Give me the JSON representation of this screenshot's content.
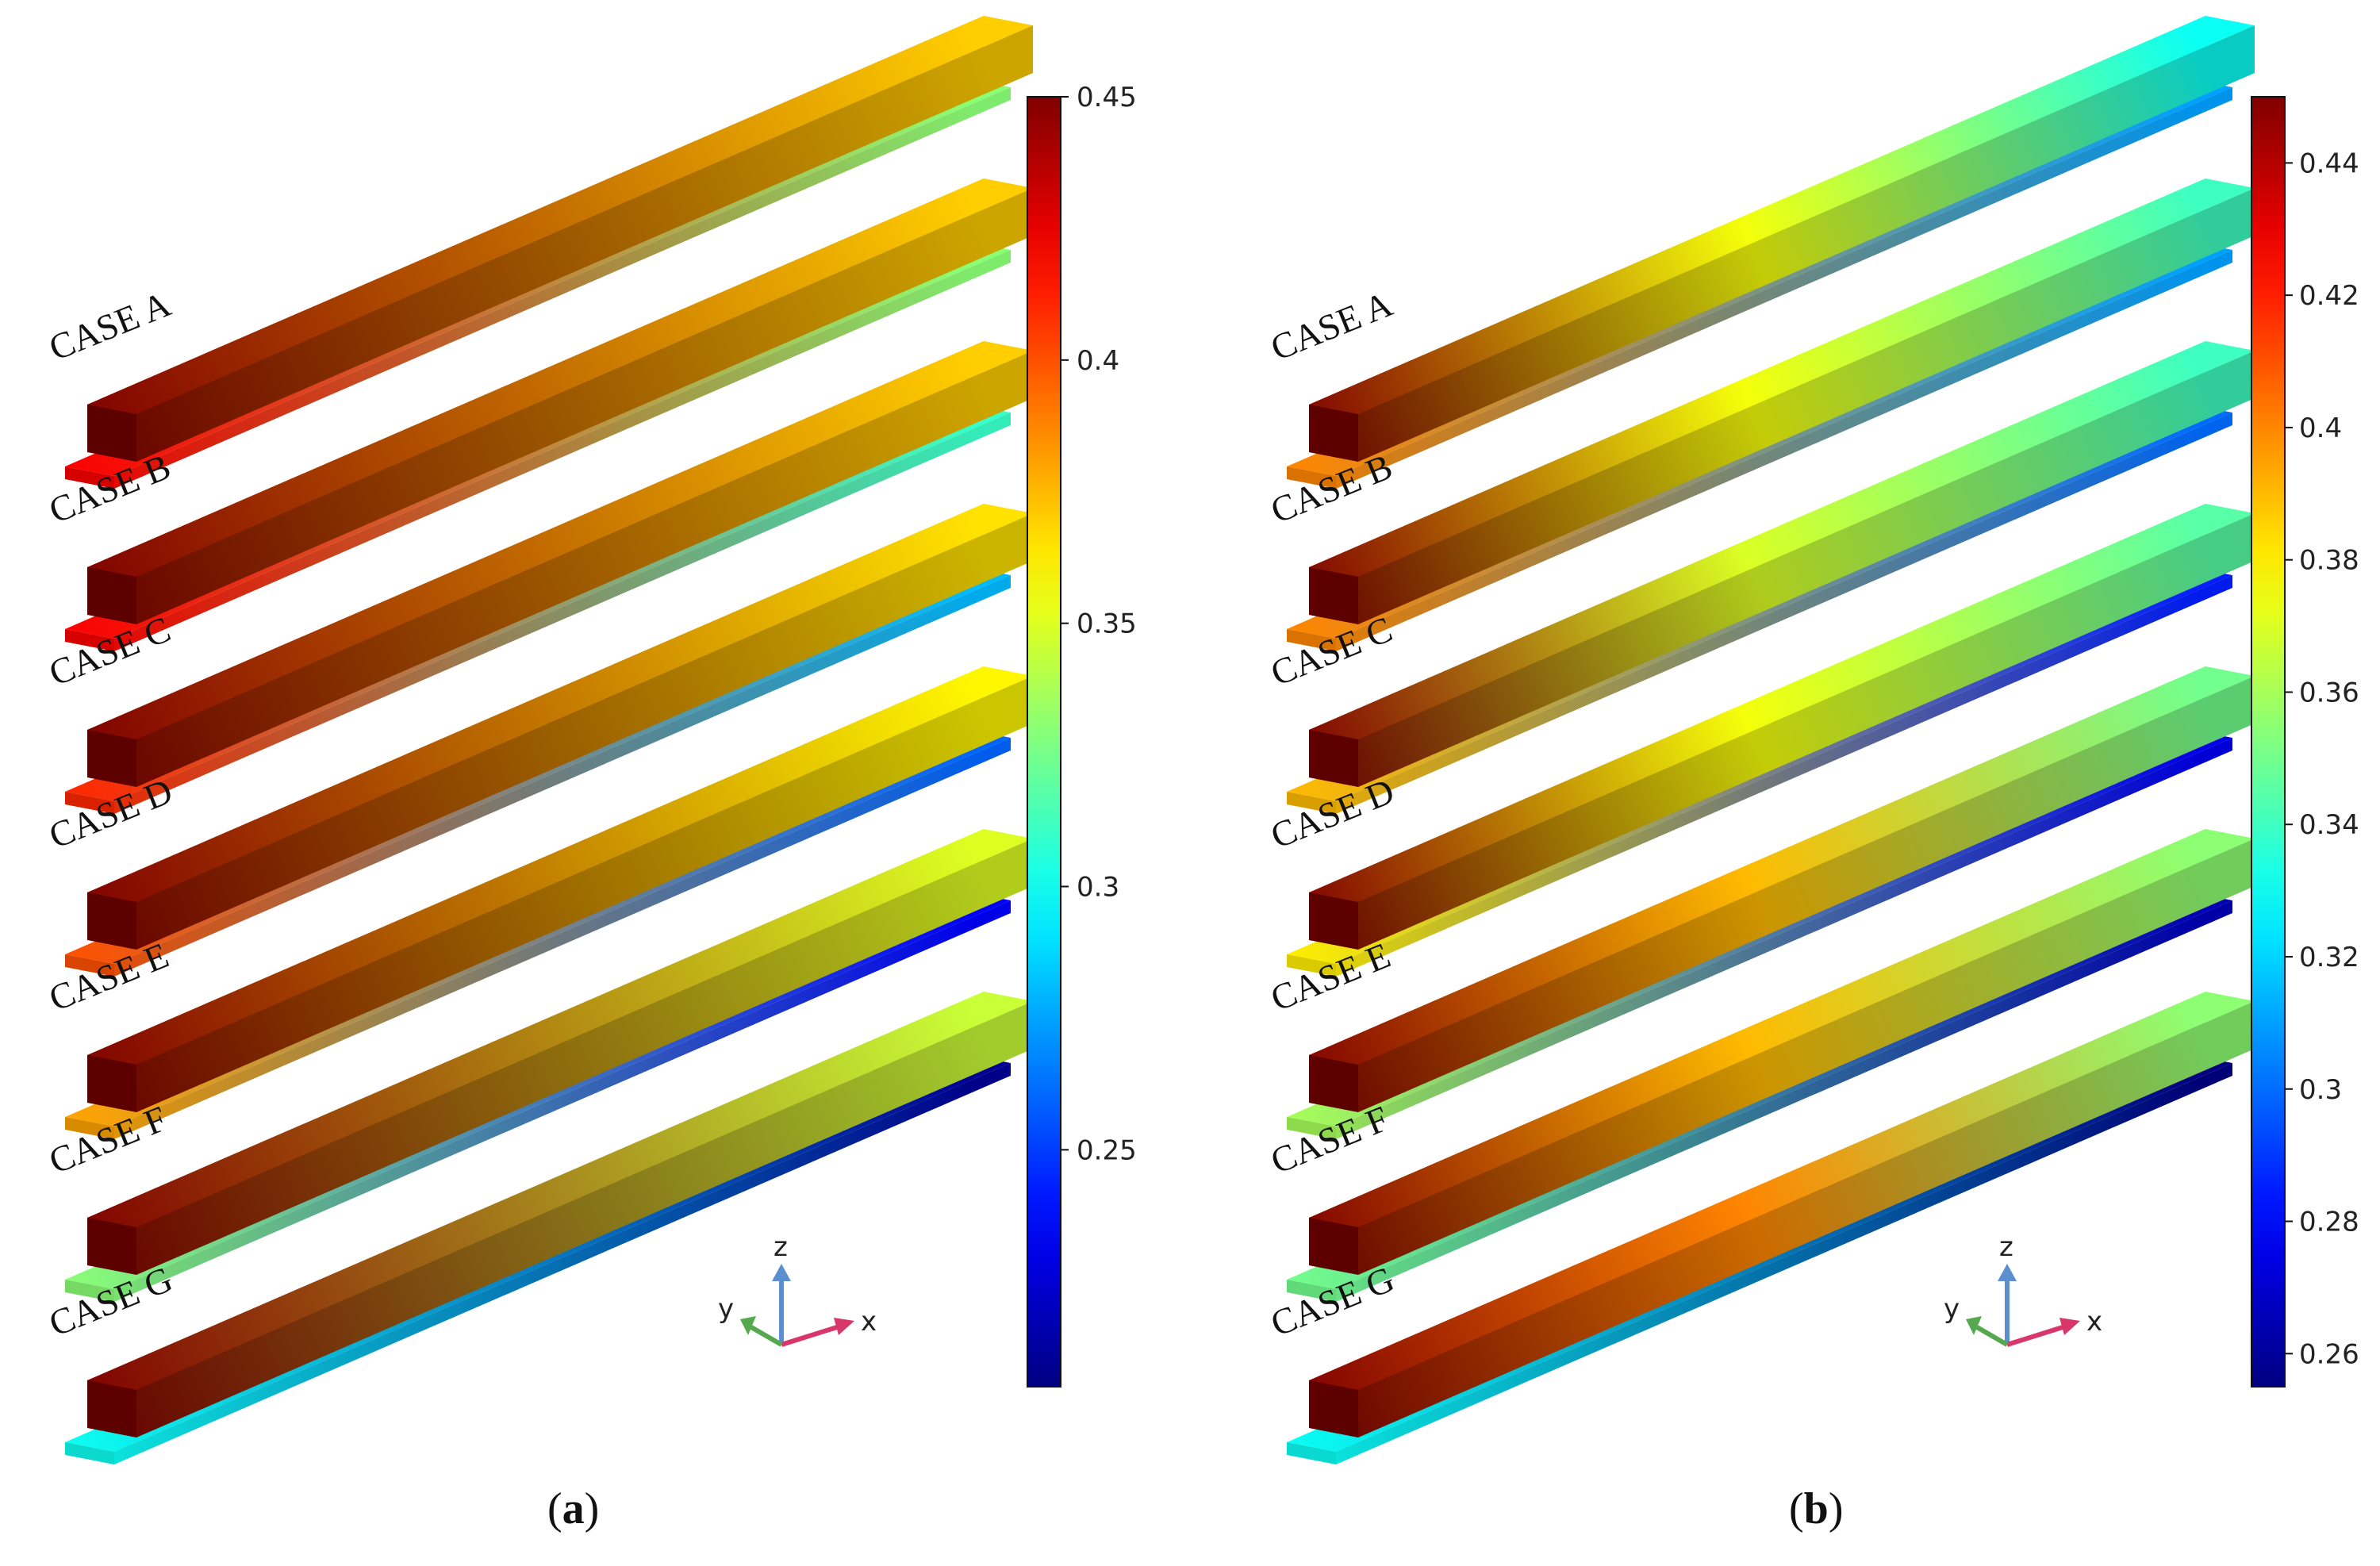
{
  "panels": [
    {
      "id": "a",
      "label": "a",
      "colorbar": {
        "min": 0.205,
        "max": 0.45,
        "ticks": [
          "0.45",
          "0.4",
          "0.35",
          "0.3",
          "0.25"
        ],
        "tick_values": [
          0.45,
          0.4,
          0.35,
          0.3,
          0.25
        ]
      },
      "cases": [
        {
          "name": "CASE A",
          "top_start": 0.45,
          "top_end": 0.37,
          "base_start": 0.42,
          "base_end": 0.33
        },
        {
          "name": "CASE B",
          "top_start": 0.45,
          "top_end": 0.37,
          "base_start": 0.42,
          "base_end": 0.33
        },
        {
          "name": "CASE C",
          "top_start": 0.45,
          "top_end": 0.37,
          "base_start": 0.41,
          "base_end": 0.31
        },
        {
          "name": "CASE D",
          "top_start": 0.45,
          "top_end": 0.365,
          "base_start": 0.4,
          "base_end": 0.28
        },
        {
          "name": "CASE E",
          "top_start": 0.45,
          "top_end": 0.36,
          "base_start": 0.38,
          "base_end": 0.26
        },
        {
          "name": "CASE F",
          "top_start": 0.45,
          "top_end": 0.35,
          "base_start": 0.33,
          "base_end": 0.235
        },
        {
          "name": "CASE G",
          "top_start": 0.45,
          "top_end": 0.345,
          "base_start": 0.3,
          "base_end": 0.21
        }
      ]
    },
    {
      "id": "b",
      "label": "b",
      "colorbar": {
        "min": 0.255,
        "max": 0.45,
        "ticks": [
          "0.44",
          "0.42",
          "0.4",
          "0.38",
          "0.36",
          "0.34",
          "0.32",
          "0.3",
          "0.28",
          "0.26"
        ],
        "tick_values": [
          0.44,
          0.42,
          0.4,
          0.38,
          0.36,
          0.34,
          0.32,
          0.3,
          0.28,
          0.26
        ]
      },
      "cases": [
        {
          "name": "CASE A",
          "top_start": 0.45,
          "top_mid": 0.375,
          "top_end": 0.33,
          "base_start": 0.4,
          "base_end": 0.31
        },
        {
          "name": "CASE B",
          "top_start": 0.45,
          "top_mid": 0.375,
          "top_end": 0.34,
          "base_start": 0.4,
          "base_end": 0.31
        },
        {
          "name": "CASE C",
          "top_start": 0.45,
          "top_mid": 0.37,
          "top_end": 0.34,
          "base_start": 0.39,
          "base_end": 0.3
        },
        {
          "name": "CASE D",
          "top_start": 0.45,
          "top_mid": 0.375,
          "top_end": 0.345,
          "base_start": 0.38,
          "base_end": 0.285
        },
        {
          "name": "CASE E",
          "top_start": 0.45,
          "top_mid": 0.39,
          "top_end": 0.35,
          "base_start": 0.36,
          "base_end": 0.275
        },
        {
          "name": "CASE F",
          "top_start": 0.45,
          "top_mid": 0.39,
          "top_end": 0.355,
          "base_start": 0.35,
          "base_end": 0.265
        },
        {
          "name": "CASE G",
          "top_start": 0.45,
          "top_mid": 0.4,
          "top_end": 0.355,
          "base_start": 0.33,
          "base_end": 0.255
        }
      ]
    }
  ],
  "axes_triad": {
    "x": "x",
    "y": "y",
    "z": "z"
  }
}
